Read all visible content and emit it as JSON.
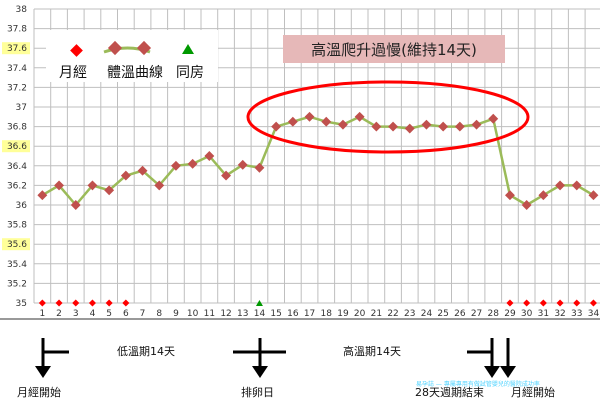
{
  "chart_data": {
    "type": "line",
    "title": "高溫爬升過慢(維持14天)",
    "xlabel": "",
    "ylabel": "",
    "x": [
      1,
      2,
      3,
      4,
      5,
      6,
      7,
      8,
      9,
      10,
      11,
      12,
      13,
      14,
      15,
      16,
      17,
      18,
      19,
      20,
      21,
      22,
      23,
      24,
      25,
      26,
      27,
      28,
      29,
      30,
      31,
      32,
      33,
      34
    ],
    "ylim": [
      35,
      38
    ],
    "yticks": [
      "35",
      "35.2",
      "35.4",
      "35.6",
      "35.8",
      "36",
      "36.2",
      "36.4",
      "36.6",
      "36.8",
      "37",
      "37.2",
      "37.4",
      "37.6",
      "37.8",
      "38"
    ],
    "highlighted_yticks": [
      "35.6",
      "36.6",
      "37.6"
    ],
    "grid": true,
    "legend_placement": "top-left",
    "series": [
      {
        "name": "體溫曲線",
        "color": "#9bbb59",
        "marker_color": "#c0504d",
        "values": [
          36.1,
          36.2,
          36.0,
          36.2,
          36.15,
          36.3,
          36.35,
          36.2,
          36.4,
          36.42,
          36.5,
          36.3,
          36.41,
          36.38,
          36.8,
          36.85,
          36.9,
          36.85,
          36.82,
          36.9,
          36.8,
          36.8,
          36.78,
          36.82,
          36.8,
          36.8,
          36.82,
          36.88,
          36.1,
          36.0,
          36.1,
          36.2,
          36.2,
          36.1
        ]
      }
    ],
    "markers": {
      "menstruation": {
        "name": "月經",
        "color": "#ff0000",
        "days": [
          1,
          2,
          3,
          4,
          5,
          6,
          29,
          30,
          31,
          32,
          33,
          34
        ]
      },
      "intercourse": {
        "name": "同房",
        "color": "#009900",
        "days": [
          14
        ]
      }
    },
    "legend": [
      "月經",
      "體溫曲線",
      "同房"
    ],
    "annotation_ellipse": {
      "color": "#ff0000",
      "day_range": [
        15,
        28
      ]
    }
  },
  "timeline": {
    "labels": [
      "月經開始",
      "低溫期14天",
      "排卵日",
      "高溫期14天",
      "28天週期結束",
      "月經開始"
    ]
  },
  "watermark": "易孕誌 — 專屬專用有做試管嬰兒的醫院成功率",
  "colors": {
    "title_box": "#e6b8b8",
    "ytick_highlight": "#ffff99",
    "grid": "#bfbfbf"
  }
}
